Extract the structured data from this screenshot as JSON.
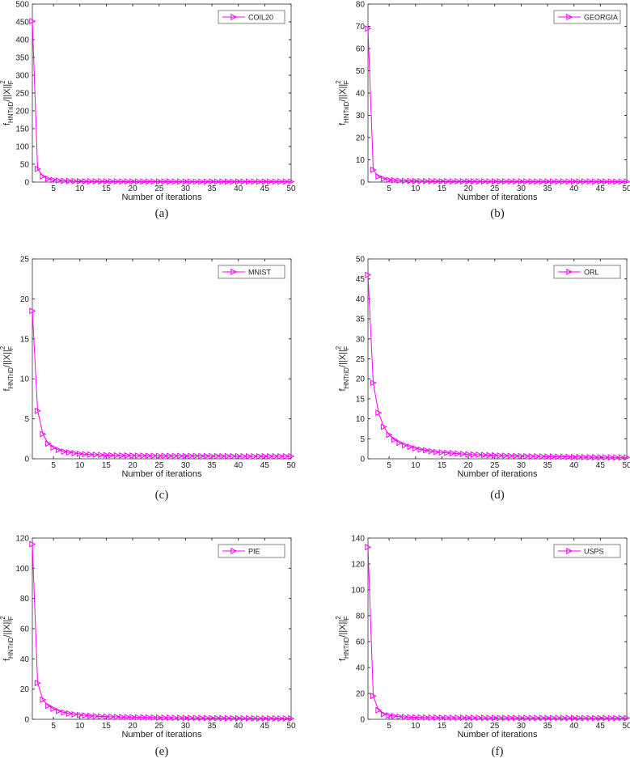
{
  "chart_data": [
    {
      "type": "line",
      "caption": "(a)",
      "xlabel": "Number of iterations",
      "ylabel": [
        "f",
        "HNTriD",
        "/||X||",
        "F",
        "2"
      ],
      "legend": "upper right",
      "x": [
        1,
        2,
        3,
        4,
        5,
        6,
        7,
        8,
        9,
        10,
        11,
        12,
        13,
        14,
        15,
        16,
        17,
        18,
        19,
        20,
        21,
        22,
        23,
        24,
        25,
        26,
        27,
        28,
        29,
        30,
        31,
        32,
        33,
        34,
        35,
        36,
        37,
        38,
        39,
        40,
        41,
        42,
        43,
        44,
        45,
        46,
        47,
        48,
        49,
        50
      ],
      "xlim": [
        1,
        50
      ],
      "xticks": [
        5,
        10,
        15,
        20,
        25,
        30,
        35,
        40,
        45,
        50
      ],
      "ylim": [
        0,
        500
      ],
      "yticks": [
        0,
        50,
        100,
        150,
        200,
        250,
        300,
        350,
        400,
        450,
        500
      ],
      "series": [
        {
          "name": "COIL20",
          "color": "#ff00ff",
          "values": [
            452,
            37,
            16,
            9,
            6,
            4.5,
            3.5,
            3,
            2.6,
            2.3,
            2.1,
            2,
            1.9,
            1.8,
            1.7,
            1.65,
            1.6,
            1.55,
            1.5,
            1.45,
            1.4,
            1.38,
            1.35,
            1.32,
            1.3,
            1.28,
            1.26,
            1.24,
            1.22,
            1.2,
            1.19,
            1.18,
            1.17,
            1.16,
            1.15,
            1.14,
            1.13,
            1.12,
            1.11,
            1.1,
            1.09,
            1.08,
            1.07,
            1.06,
            1.05,
            1.04,
            1.03,
            1.02,
            1.01,
            1
          ]
        }
      ]
    },
    {
      "type": "line",
      "caption": "(b)",
      "xlabel": "Number of iterations",
      "ylabel": [
        "f",
        "HNTriD",
        "/||X||",
        "F",
        "2"
      ],
      "legend": "upper right",
      "x": [
        1,
        2,
        3,
        4,
        5,
        6,
        7,
        8,
        9,
        10,
        11,
        12,
        13,
        14,
        15,
        16,
        17,
        18,
        19,
        20,
        21,
        22,
        23,
        24,
        25,
        26,
        27,
        28,
        29,
        30,
        31,
        32,
        33,
        34,
        35,
        36,
        37,
        38,
        39,
        40,
        41,
        42,
        43,
        44,
        45,
        46,
        47,
        48,
        49,
        50
      ],
      "xlim": [
        1,
        50
      ],
      "xticks": [
        5,
        10,
        15,
        20,
        25,
        30,
        35,
        40,
        45,
        50
      ],
      "ylim": [
        0,
        80
      ],
      "yticks": [
        0,
        10,
        20,
        30,
        40,
        50,
        60,
        70,
        80
      ],
      "series": [
        {
          "name": "GEORGIA",
          "color": "#ff00ff",
          "values": [
            69,
            5.5,
            2.5,
            1.5,
            1,
            0.8,
            0.65,
            0.55,
            0.5,
            0.45,
            0.42,
            0.4,
            0.38,
            0.36,
            0.35,
            0.34,
            0.33,
            0.32,
            0.31,
            0.3,
            0.29,
            0.29,
            0.28,
            0.28,
            0.27,
            0.27,
            0.26,
            0.26,
            0.25,
            0.25,
            0.25,
            0.24,
            0.24,
            0.24,
            0.23,
            0.23,
            0.23,
            0.22,
            0.22,
            0.22,
            0.21,
            0.21,
            0.21,
            0.2,
            0.2,
            0.2,
            0.2,
            0.19,
            0.19,
            0.19
          ]
        }
      ]
    },
    {
      "type": "line",
      "caption": "(c)",
      "xlabel": "Number of iterations",
      "ylabel": [
        "f",
        "HNTriD",
        "/||X||",
        "F",
        "2"
      ],
      "legend": "upper right",
      "x": [
        1,
        2,
        3,
        4,
        5,
        6,
        7,
        8,
        9,
        10,
        11,
        12,
        13,
        14,
        15,
        16,
        17,
        18,
        19,
        20,
        21,
        22,
        23,
        24,
        25,
        26,
        27,
        28,
        29,
        30,
        31,
        32,
        33,
        34,
        35,
        36,
        37,
        38,
        39,
        40,
        41,
        42,
        43,
        44,
        45,
        46,
        47,
        48,
        49,
        50
      ],
      "xlim": [
        1,
        50
      ],
      "xticks": [
        5,
        10,
        15,
        20,
        25,
        30,
        35,
        40,
        45,
        50
      ],
      "ylim": [
        0,
        25
      ],
      "yticks": [
        0,
        5,
        10,
        15,
        20,
        25
      ],
      "series": [
        {
          "name": "MNIST",
          "color": "#ff00ff",
          "values": [
            18.5,
            6,
            3.1,
            1.9,
            1.4,
            1.1,
            0.9,
            0.8,
            0.7,
            0.62,
            0.57,
            0.53,
            0.5,
            0.48,
            0.46,
            0.44,
            0.43,
            0.42,
            0.41,
            0.4,
            0.39,
            0.39,
            0.38,
            0.38,
            0.37,
            0.37,
            0.36,
            0.36,
            0.36,
            0.35,
            0.35,
            0.35,
            0.34,
            0.34,
            0.34,
            0.34,
            0.33,
            0.33,
            0.33,
            0.33,
            0.32,
            0.32,
            0.32,
            0.32,
            0.32,
            0.31,
            0.31,
            0.31,
            0.31,
            0.31
          ]
        }
      ]
    },
    {
      "type": "line",
      "caption": "(d)",
      "xlabel": "Number of iterations",
      "ylabel": [
        "f",
        "HNTriD",
        "/||X||",
        "F",
        "2"
      ],
      "legend": "upper right",
      "x": [
        1,
        2,
        3,
        4,
        5,
        6,
        7,
        8,
        9,
        10,
        11,
        12,
        13,
        14,
        15,
        16,
        17,
        18,
        19,
        20,
        21,
        22,
        23,
        24,
        25,
        26,
        27,
        28,
        29,
        30,
        31,
        32,
        33,
        34,
        35,
        36,
        37,
        38,
        39,
        40,
        41,
        42,
        43,
        44,
        45,
        46,
        47,
        48,
        49,
        50
      ],
      "xlim": [
        1,
        50
      ],
      "xticks": [
        5,
        10,
        15,
        20,
        25,
        30,
        35,
        40,
        45,
        50
      ],
      "ylim": [
        0,
        50
      ],
      "yticks": [
        0,
        5,
        10,
        15,
        20,
        25,
        30,
        35,
        40,
        45,
        50
      ],
      "series": [
        {
          "name": "ORL",
          "color": "#ff00ff",
          "values": [
            46,
            19,
            11.5,
            8,
            6,
            4.8,
            4,
            3.4,
            3,
            2.6,
            2.3,
            2.1,
            1.9,
            1.7,
            1.6,
            1.5,
            1.4,
            1.3,
            1.2,
            1.1,
            1.05,
            1,
            0.95,
            0.9,
            0.85,
            0.8,
            0.77,
            0.74,
            0.71,
            0.68,
            0.65,
            0.62,
            0.6,
            0.58,
            0.56,
            0.54,
            0.52,
            0.5,
            0.48,
            0.46,
            0.44,
            0.42,
            0.4,
            0.39,
            0.38,
            0.37,
            0.36,
            0.35,
            0.34,
            0.33
          ]
        }
      ]
    },
    {
      "type": "line",
      "caption": "(e)",
      "xlabel": "Number of iterations",
      "ylabel": [
        "f",
        "HNTriD",
        "/||X||",
        "F",
        "2"
      ],
      "legend": "upper right",
      "x": [
        1,
        2,
        3,
        4,
        5,
        6,
        7,
        8,
        9,
        10,
        11,
        12,
        13,
        14,
        15,
        16,
        17,
        18,
        19,
        20,
        21,
        22,
        23,
        24,
        25,
        26,
        27,
        28,
        29,
        30,
        31,
        32,
        33,
        34,
        35,
        36,
        37,
        38,
        39,
        40,
        41,
        42,
        43,
        44,
        45,
        46,
        47,
        48,
        49,
        50
      ],
      "xlim": [
        1,
        50
      ],
      "xticks": [
        5,
        10,
        15,
        20,
        25,
        30,
        35,
        40,
        45,
        50
      ],
      "ylim": [
        0,
        120
      ],
      "yticks": [
        0,
        20,
        40,
        60,
        80,
        100,
        120
      ],
      "series": [
        {
          "name": "PIE",
          "color": "#ff00ff",
          "values": [
            116,
            24,
            13,
            9,
            7,
            5.5,
            4.5,
            3.8,
            3.3,
            2.9,
            2.6,
            2.3,
            2.1,
            1.9,
            1.8,
            1.7,
            1.6,
            1.5,
            1.45,
            1.4,
            1.35,
            1.3,
            1.25,
            1.2,
            1.15,
            1.1,
            1.06,
            1.02,
            0.98,
            0.95,
            0.92,
            0.89,
            0.86,
            0.83,
            0.8,
            0.78,
            0.76,
            0.74,
            0.72,
            0.7,
            0.68,
            0.66,
            0.64,
            0.62,
            0.6,
            0.58,
            0.56,
            0.54,
            0.52,
            0.5
          ]
        }
      ]
    },
    {
      "type": "line",
      "caption": "(f)",
      "xlabel": "Number of iterations",
      "ylabel": [
        "f",
        "HNTriD",
        "/||X||",
        "F",
        "2"
      ],
      "legend": "upper right",
      "x": [
        1,
        2,
        3,
        4,
        5,
        6,
        7,
        8,
        9,
        10,
        11,
        12,
        13,
        14,
        15,
        16,
        17,
        18,
        19,
        20,
        21,
        22,
        23,
        24,
        25,
        26,
        27,
        28,
        29,
        30,
        31,
        32,
        33,
        34,
        35,
        36,
        37,
        38,
        39,
        40,
        41,
        42,
        43,
        44,
        45,
        46,
        47,
        48,
        49,
        50
      ],
      "xlim": [
        1,
        50
      ],
      "xticks": [
        5,
        10,
        15,
        20,
        25,
        30,
        35,
        40,
        45,
        50
      ],
      "ylim": [
        0,
        140
      ],
      "yticks": [
        0,
        20,
        40,
        60,
        80,
        100,
        120,
        140
      ],
      "series": [
        {
          "name": "USPS",
          "color": "#ff00ff",
          "values": [
            133,
            18,
            7,
            4,
            3,
            2.5,
            2.1,
            1.8,
            1.6,
            1.5,
            1.45,
            1.4,
            1.35,
            1.3,
            1.28,
            1.26,
            1.24,
            1.22,
            1.2,
            1.18,
            1.16,
            1.14,
            1.12,
            1.1,
            1.09,
            1.08,
            1.07,
            1.06,
            1.05,
            1.04,
            1.03,
            1.02,
            1.01,
            1,
            1,
            0.99,
            0.99,
            0.98,
            0.98,
            0.97,
            0.97,
            0.96,
            0.96,
            0.95,
            0.95,
            0.94,
            0.94,
            0.93,
            0.93,
            0.92
          ]
        }
      ]
    }
  ]
}
